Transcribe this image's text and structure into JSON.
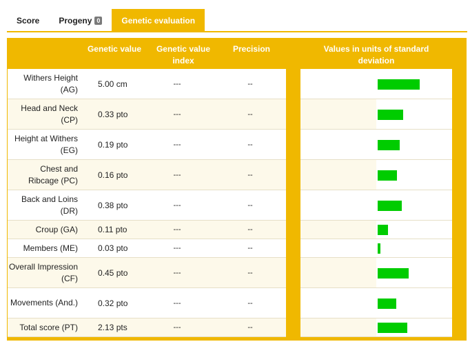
{
  "tabs": [
    {
      "label": "Score",
      "badge": ""
    },
    {
      "label": "Progeny",
      "badge": "0"
    },
    {
      "label": "Genetic evaluation",
      "badge": ""
    }
  ],
  "active_tab": "Genetic evaluation",
  "columns": {
    "genetic_value": "Genetic value",
    "genetic_value_index": "Genetic value index",
    "precision": "Precision",
    "std_units": "Values in units of standard deviation"
  },
  "colors": {
    "accent": "#f0b800",
    "bar": "#00cc00",
    "row_alt": "#fdf9ea"
  },
  "rows": [
    {
      "trait": "Withers Height (AG)",
      "value": "5.00 cm",
      "index": "---",
      "precision": "--",
      "std": 1.0
    },
    {
      "trait": "Head and Neck (CP)",
      "value": "0.33 pto",
      "index": "---",
      "precision": "--",
      "std": 0.6
    },
    {
      "trait": "Height at Withers (EG)",
      "value": "0.19 pto",
      "index": "---",
      "precision": "--",
      "std": 0.52
    },
    {
      "trait": "Chest and Ribcage (PC)",
      "value": "0.16 pto",
      "index": "---",
      "precision": "--",
      "std": 0.46
    },
    {
      "trait": "Back and Loins (DR)",
      "value": "0.38 pto",
      "index": "---",
      "precision": "--",
      "std": 0.57
    },
    {
      "trait": "Croup (GA)",
      "value": "0.11 pto",
      "index": "---",
      "precision": "--",
      "std": 0.25
    },
    {
      "trait": "Members (ME)",
      "value": "0.03 pto",
      "index": "---",
      "precision": "--",
      "std": 0.07
    },
    {
      "trait": "Overall Impression (CF)",
      "value": "0.45 pto",
      "index": "---",
      "precision": "--",
      "std": 0.74
    },
    {
      "trait": "Movements (And.)",
      "value": "0.32 pto",
      "index": "---",
      "precision": "--",
      "std": 0.44
    },
    {
      "trait": "Total score (PT)",
      "value": "2.13 pts",
      "index": "---",
      "precision": "--",
      "std": 0.71
    }
  ]
}
